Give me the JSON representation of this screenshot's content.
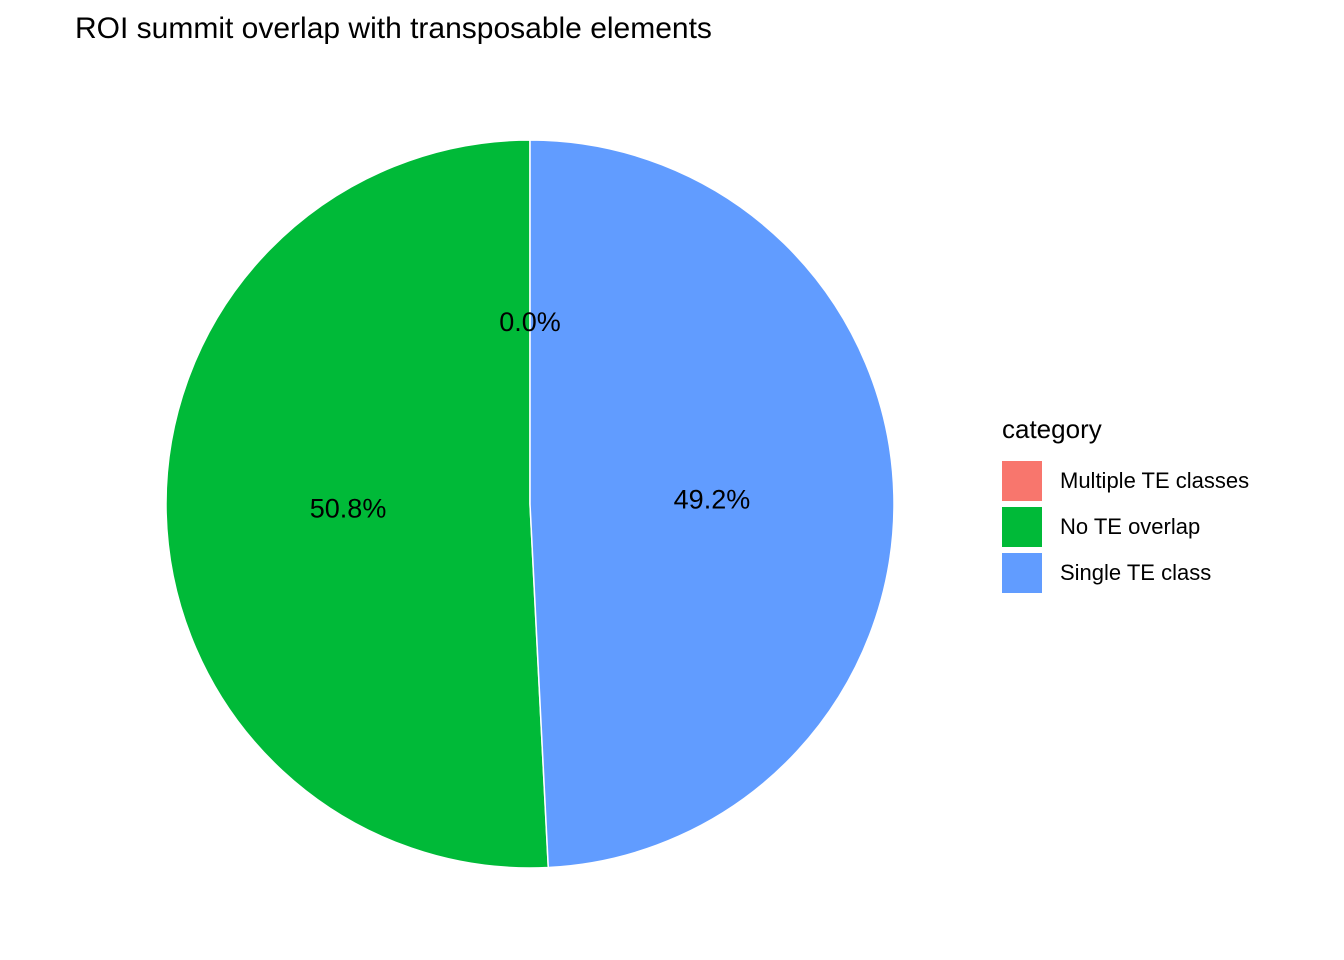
{
  "chart_data": {
    "type": "pie",
    "title": "ROI summit overlap with transposable elements",
    "legend_title": "category",
    "legend_position": "right",
    "slices": [
      {
        "category": "Multiple TE classes",
        "value": 0.0,
        "label": "0.0%",
        "color": "#F8766D"
      },
      {
        "category": "No TE overlap",
        "value": 50.8,
        "label": "50.8%",
        "color": "#00BA38"
      },
      {
        "category": "Single TE class",
        "value": 49.2,
        "label": "49.2%",
        "color": "#619CFF"
      }
    ]
  }
}
